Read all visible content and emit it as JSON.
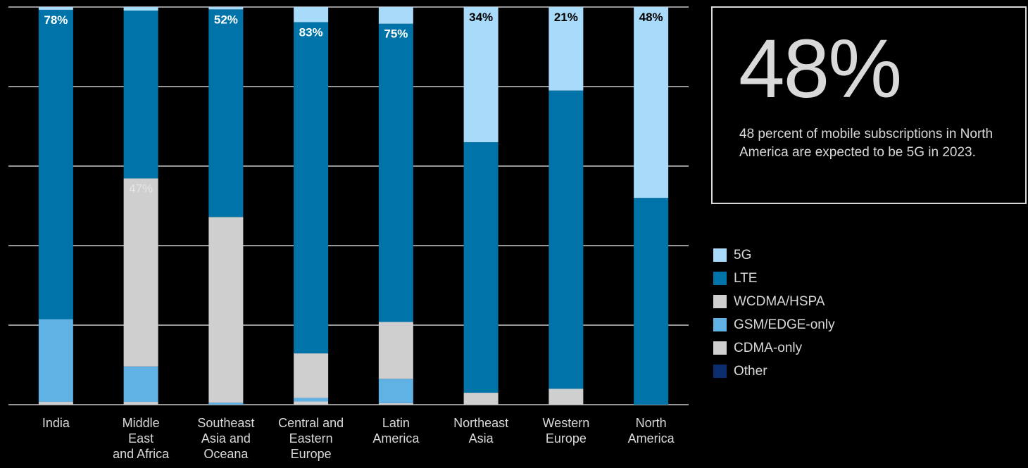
{
  "chart_data": {
    "type": "bar",
    "stacked": true,
    "categories": [
      "India",
      "Middle East and Africa",
      "Southeast Asia and Oceana",
      "Central and Eastern Europe",
      "Latin America",
      "Northeast Asia",
      "Western Europe",
      "North America"
    ],
    "category_lines": [
      [
        "India"
      ],
      [
        "Middle",
        "East",
        "and Africa"
      ],
      [
        "Southeast",
        "Asia and",
        "Oceana"
      ],
      [
        "Central and",
        "Eastern",
        "Europe"
      ],
      [
        "Latin",
        "America"
      ],
      [
        "Northeast",
        "Asia"
      ],
      [
        "Western",
        "Europe"
      ],
      [
        "North",
        "America"
      ]
    ],
    "series": [
      {
        "name": "Other",
        "color": "#0b2d6e",
        "values": [
          0,
          0,
          0,
          0,
          0,
          0,
          0,
          0
        ]
      },
      {
        "name": "CDMA-only",
        "color": "#cfcfcf",
        "values": [
          0.7,
          0.7,
          0,
          0.8,
          0.4,
          0,
          0,
          0
        ]
      },
      {
        "name": "GSM/EDGE-only",
        "color": "#60b2e4",
        "values": [
          20.8,
          8.9,
          0.5,
          0.9,
          6.1,
          0,
          0,
          0
        ]
      },
      {
        "name": "WCDMA/HSPA",
        "color": "#cfcfcf",
        "values": [
          0,
          47.3,
          46.7,
          11.2,
          14.3,
          3.0,
          4.0,
          0
        ]
      },
      {
        "name": "LTE",
        "color": "#0074a8",
        "values": [
          77.8,
          42.2,
          52.2,
          83.3,
          75.0,
          63.0,
          75.0,
          52.0
        ]
      },
      {
        "name": "5G",
        "color": "#a8daf9",
        "values": [
          0.7,
          0.9,
          0.6,
          3.8,
          4.2,
          34.0,
          21.0,
          48.0
        ]
      }
    ],
    "data_labels": [
      {
        "category": 0,
        "series": "LTE",
        "text": "78%",
        "color": "#ffffff"
      },
      {
        "category": 1,
        "series": "WCDMA/HSPA",
        "text": "47%",
        "color": "#e6e6e6"
      },
      {
        "category": 2,
        "series": "LTE",
        "text": "52%",
        "color": "#ffffff"
      },
      {
        "category": 3,
        "series": "LTE",
        "text": "83%",
        "color": "#ffffff"
      },
      {
        "category": 4,
        "series": "LTE",
        "text": "75%",
        "color": "#ffffff"
      },
      {
        "category": 5,
        "series": "5G",
        "text": "34%",
        "color": "#000000"
      },
      {
        "category": 6,
        "series": "5G",
        "text": "21%",
        "color": "#000000"
      },
      {
        "category": 7,
        "series": "5G",
        "text": "48%",
        "color": "#000000"
      }
    ],
    "ylim": [
      0,
      100
    ],
    "grid": true,
    "legend_position": "right"
  },
  "callout": {
    "big_number": "48%",
    "description": "48 percent of mobile subscriptions in North America are expected to be 5G in 2023."
  },
  "legend": [
    {
      "label": "5G",
      "color": "#a8daf9"
    },
    {
      "label": "LTE",
      "color": "#0074a8"
    },
    {
      "label": "WCDMA/HSPA",
      "color": "#cfcfcf"
    },
    {
      "label": "GSM/EDGE-only",
      "color": "#60b2e4"
    },
    {
      "label": "CDMA-only",
      "color": "#cfcfcf"
    },
    {
      "label": "Other",
      "color": "#0b2d6e"
    }
  ]
}
